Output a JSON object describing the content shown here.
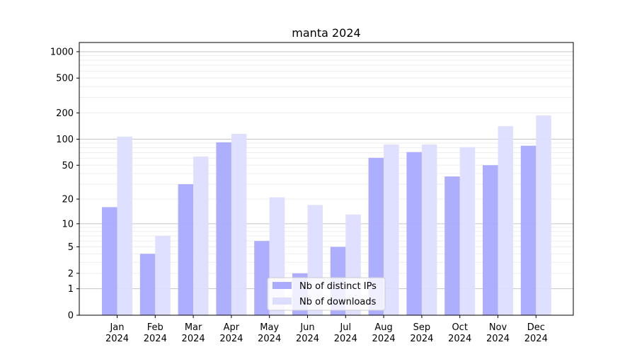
{
  "chart_data": {
    "type": "bar",
    "title": "manta 2024",
    "xlabel": "",
    "ylabel": "",
    "yscale": "log(1+y)",
    "ylim": [
      0,
      1200
    ],
    "yticks": [
      0,
      1,
      2,
      5,
      10,
      20,
      50,
      100,
      200,
      500,
      1000
    ],
    "grid": true,
    "legend_position": "bottom-center",
    "categories": [
      "Jan\n2024",
      "Feb\n2024",
      "Mar\n2024",
      "Apr\n2024",
      "May\n2024",
      "Jun\n2024",
      "Jul\n2024",
      "Aug\n2024",
      "Sep\n2024",
      "Oct\n2024",
      "Nov\n2024",
      "Dec\n2024"
    ],
    "series": [
      {
        "name": "Nb of distinct IPs",
        "color": "#aaaaff",
        "values": [
          16,
          4,
          30,
          92,
          6,
          2,
          5,
          61,
          71,
          37,
          50,
          84
        ]
      },
      {
        "name": "Nb of downloads",
        "color": "#ddddff",
        "values": [
          107,
          7,
          63,
          115,
          21,
          17,
          13,
          87,
          87,
          81,
          141,
          187
        ]
      }
    ]
  }
}
